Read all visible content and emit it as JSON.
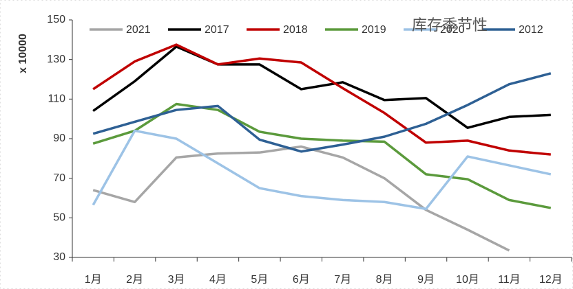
{
  "chart_data": {
    "type": "line",
    "title": "库存季节性",
    "ylabel": "x 10000",
    "categories": [
      "1月",
      "2月",
      "3月",
      "4月",
      "5月",
      "6月",
      "7月",
      "8月",
      "9月",
      "10月",
      "11月",
      "12月"
    ],
    "ylim": [
      30,
      150
    ],
    "yticks": [
      30,
      50,
      70,
      90,
      110,
      130,
      150
    ],
    "series": [
      {
        "name": "2021",
        "color": "#a6a6a6",
        "values": [
          64,
          58,
          80.5,
          82.5,
          83,
          86,
          80.5,
          70,
          54,
          44,
          33.5,
          null
        ]
      },
      {
        "name": "2017",
        "color": "#000000",
        "values": [
          104,
          119,
          136.5,
          127.5,
          127.5,
          115,
          118.5,
          109.5,
          110.5,
          95.5,
          101,
          102
        ]
      },
      {
        "name": "2018",
        "color": "#c00000",
        "values": [
          115,
          129,
          137.5,
          127.5,
          130.5,
          128.5,
          115.5,
          103,
          88,
          89,
          84,
          82
        ]
      },
      {
        "name": "2019",
        "color": "#5b9a3c",
        "values": [
          87.5,
          94,
          107.5,
          104.5,
          93.5,
          90,
          89,
          88.5,
          72,
          69.5,
          59,
          55
        ]
      },
      {
        "name": "2020",
        "color": "#9dc3e6",
        "values": [
          56.5,
          94,
          90,
          77.5,
          65,
          61,
          59,
          58,
          54.5,
          81,
          76.5,
          72
        ]
      },
      {
        "name": "2012",
        "color": "#2e6094",
        "values": [
          92.5,
          98.5,
          104.5,
          106.5,
          89.5,
          83.5,
          87,
          91,
          97.5,
          107,
          117.5,
          123
        ]
      }
    ]
  }
}
